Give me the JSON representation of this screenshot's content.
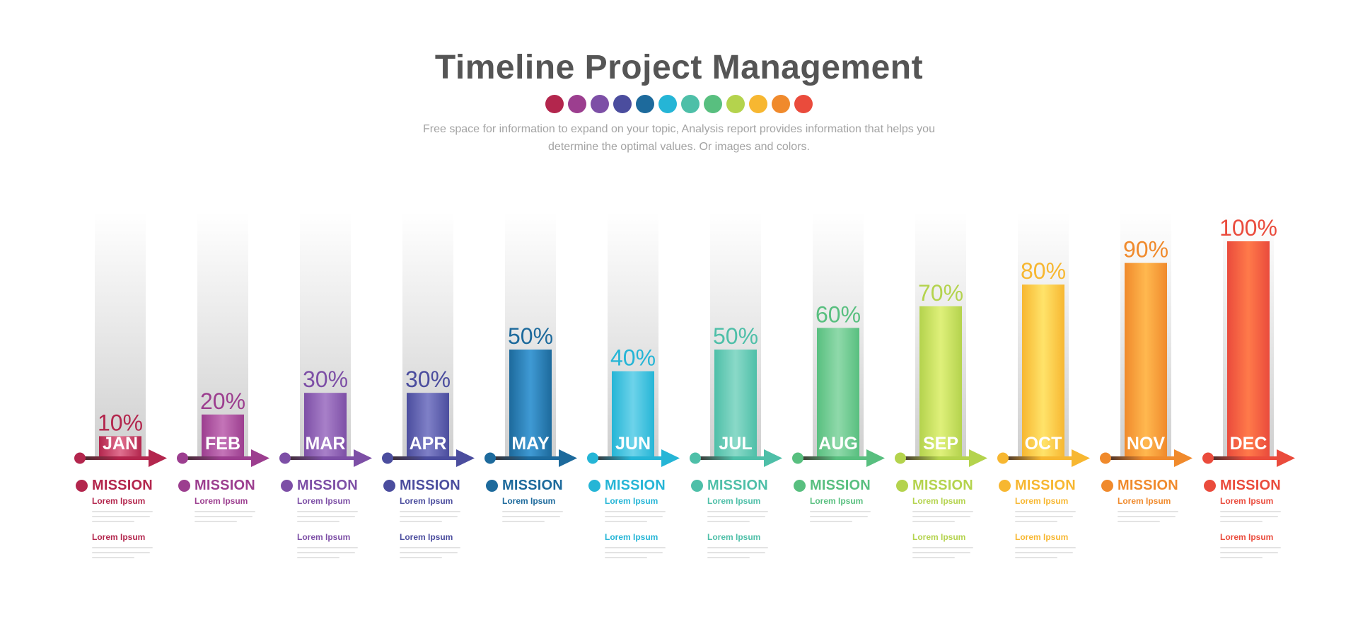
{
  "title": "Timeline Project Management",
  "subtitle_line1": "Free space for information to expand on your topic, Analysis report provides information that helps you",
  "subtitle_line2": "determine the optimal values. Or images and colors.",
  "palette": [
    "#b3264d",
    "#9c3e8f",
    "#7d4fa6",
    "#4b4d9e",
    "#1d6a9c",
    "#25b5d6",
    "#4ebfa8",
    "#58bf7f",
    "#b4d34d",
    "#f7b731",
    "#f08a2c",
    "#ea4b3c"
  ],
  "mission_label": "MISSION",
  "lorem_label": "Lorem Ipsum",
  "chart_data": {
    "type": "bar",
    "categories": [
      "JAN",
      "FEB",
      "MAR",
      "APR",
      "MAY",
      "JUN",
      "JUL",
      "AUG",
      "SEP",
      "OCT",
      "NOV",
      "DEC"
    ],
    "values": [
      10,
      20,
      30,
      30,
      50,
      40,
      50,
      60,
      70,
      80,
      90,
      100
    ],
    "value_labels": [
      "10%",
      "20%",
      "30%",
      "30%",
      "50%",
      "40%",
      "50%",
      "60%",
      "70%",
      "80%",
      "90%",
      "100%"
    ],
    "ylim": [
      0,
      100
    ],
    "colors": [
      "#b3264d",
      "#9c3e8f",
      "#7d4fa6",
      "#4b4d9e",
      "#1d6a9c",
      "#25b5d6",
      "#4ebfa8",
      "#58bf7f",
      "#b4d34d",
      "#f7b731",
      "#f08a2c",
      "#ea4b3c"
    ],
    "light_colors": [
      "#e0708f",
      "#c474b8",
      "#a880c9",
      "#7f80c7",
      "#3f9ad4",
      "#6dd3ea",
      "#8ad9c8",
      "#8fd9aa",
      "#dff07a",
      "#ffe36a",
      "#ffb84f",
      "#ff7a4a"
    ],
    "second_lorem": [
      true,
      false,
      true,
      true,
      false,
      true,
      true,
      false,
      true,
      true,
      false,
      true
    ]
  }
}
